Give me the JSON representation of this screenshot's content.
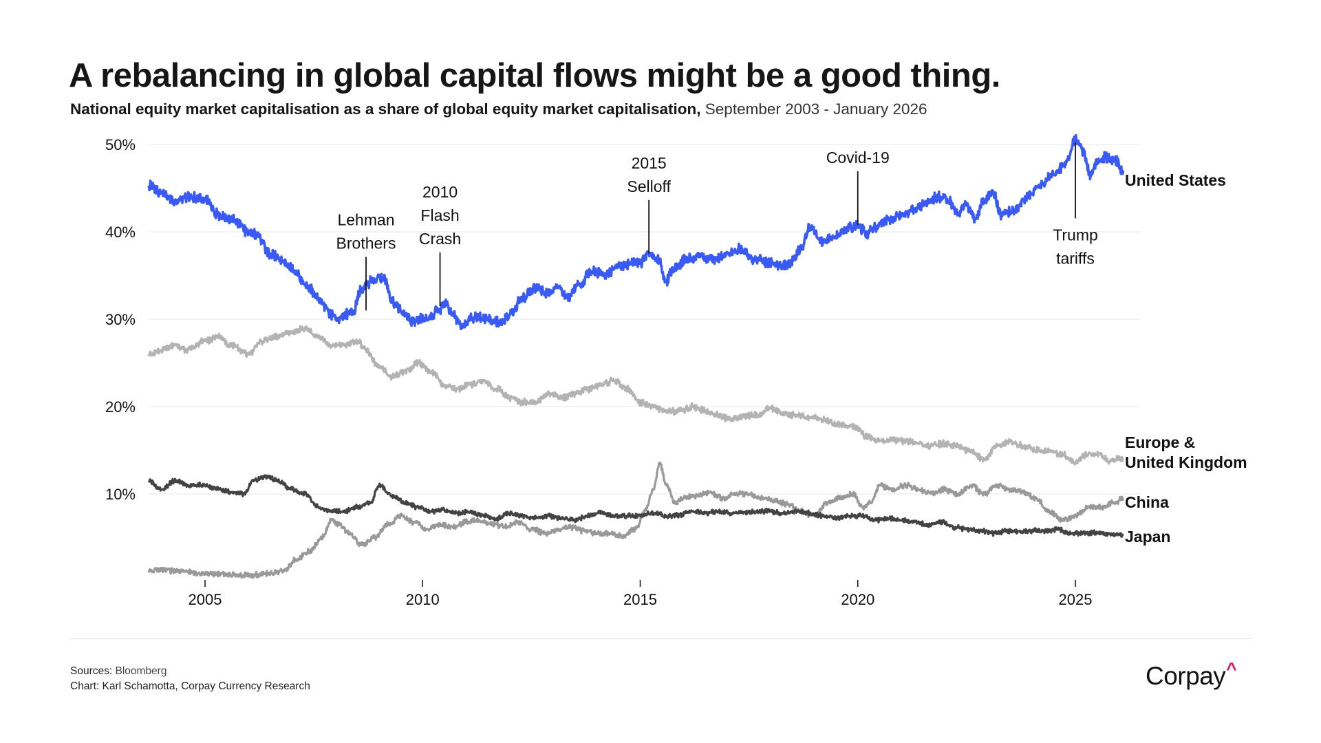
{
  "header": {
    "title": "A rebalancing in global capital flows might be a good thing.",
    "subtitle_bold": "National equity market capitalisation as a share of global equity market capitalisation,",
    "subtitle_period": " September 2003 - January 2026"
  },
  "footer": {
    "sources_label": "Sources:",
    "sources_value": " Bloomberg",
    "chart_credit": "Chart: Karl Schamotta, Corpay Currency Research",
    "logo_text": "Corpay",
    "logo_caret": "^"
  },
  "chart_data": {
    "type": "line",
    "title": "A rebalancing in global capital flows might be a good thing.",
    "subtitle": "National equity market capitalisation as a share of global equity market capitalisation, September 2003 - January 2026",
    "xlabel": "",
    "ylabel": "",
    "xlim": [
      2003.7,
      2026.1
    ],
    "ylim": [
      0,
      52
    ],
    "grid": true,
    "legend": "inline-right",
    "y_ticks": [
      {
        "value": 10,
        "label": "10%"
      },
      {
        "value": 20,
        "label": "20%"
      },
      {
        "value": 30,
        "label": "30%"
      },
      {
        "value": 40,
        "label": "40%"
      },
      {
        "value": 50,
        "label": "50%"
      }
    ],
    "x_ticks": [
      {
        "value": 2005,
        "label": "2005"
      },
      {
        "value": 2010,
        "label": "2010"
      },
      {
        "value": 2015,
        "label": "2015"
      },
      {
        "value": 2020,
        "label": "2020"
      },
      {
        "value": 2025,
        "label": "2025"
      }
    ],
    "series": [
      {
        "name": "United States",
        "color": "#3a5af5",
        "x": [
          2003.7,
          2004.0,
          2004.3,
          2004.6,
          2005.0,
          2005.3,
          2005.6,
          2006.0,
          2006.2,
          2006.5,
          2006.8,
          2007.0,
          2007.3,
          2007.6,
          2007.9,
          2008.1,
          2008.4,
          2008.6,
          2008.9,
          2009.1,
          2009.3,
          2009.5,
          2009.8,
          2010.1,
          2010.4,
          2010.5,
          2010.7,
          2010.9,
          2011.2,
          2011.5,
          2011.8,
          2012.0,
          2012.3,
          2012.6,
          2012.9,
          2013.1,
          2013.3,
          2013.6,
          2013.9,
          2014.2,
          2014.5,
          2014.8,
          2015.0,
          2015.2,
          2015.4,
          2015.6,
          2015.8,
          2016.1,
          2016.4,
          2016.7,
          2017.0,
          2017.3,
          2017.6,
          2017.9,
          2018.2,
          2018.4,
          2018.7,
          2018.9,
          2019.2,
          2019.5,
          2019.8,
          2020.0,
          2020.2,
          2020.4,
          2020.7,
          2021.0,
          2021.3,
          2021.6,
          2021.9,
          2022.1,
          2022.3,
          2022.5,
          2022.7,
          2022.9,
          2023.1,
          2023.3,
          2023.6,
          2023.9,
          2024.2,
          2024.5,
          2024.8,
          2025.0,
          2025.1,
          2025.2,
          2025.35,
          2025.5,
          2025.7,
          2025.9,
          2026.1
        ],
        "values": [
          45.3,
          44.5,
          43.5,
          44.0,
          43.8,
          42.0,
          41.5,
          40.0,
          39.5,
          37.5,
          36.5,
          35.8,
          34.0,
          32.5,
          30.5,
          30.2,
          31.0,
          33.5,
          34.5,
          34.8,
          32.0,
          31.0,
          29.8,
          30.0,
          31.0,
          31.8,
          30.5,
          29.2,
          30.2,
          30.0,
          29.5,
          30.5,
          32.5,
          33.5,
          33.0,
          33.8,
          32.5,
          34.0,
          35.5,
          35.2,
          36.0,
          36.3,
          36.5,
          37.5,
          37.0,
          34.5,
          36.0,
          37.0,
          37.2,
          36.8,
          37.5,
          38.0,
          37.0,
          36.5,
          36.0,
          36.3,
          38.0,
          40.5,
          39.0,
          39.5,
          40.5,
          40.8,
          39.8,
          40.5,
          41.5,
          41.8,
          42.5,
          43.5,
          44.0,
          43.5,
          42.0,
          43.0,
          41.5,
          43.5,
          44.5,
          42.0,
          42.5,
          44.0,
          45.5,
          46.5,
          48.0,
          50.5,
          50.0,
          49.0,
          46.5,
          48.0,
          48.5,
          48.2,
          47.0
        ]
      },
      {
        "name": "Europe & United Kingdom",
        "color": "#b3b3b3",
        "x": [
          2003.7,
          2004.0,
          2004.3,
          2004.6,
          2005.0,
          2005.3,
          2005.6,
          2006.0,
          2006.3,
          2006.6,
          2007.0,
          2007.3,
          2007.6,
          2007.9,
          2008.2,
          2008.5,
          2008.7,
          2009.0,
          2009.3,
          2009.6,
          2009.9,
          2010.2,
          2010.5,
          2010.8,
          2011.1,
          2011.4,
          2011.7,
          2012.0,
          2012.3,
          2012.6,
          2012.9,
          2013.2,
          2013.5,
          2013.8,
          2014.1,
          2014.4,
          2014.7,
          2015.0,
          2015.3,
          2015.6,
          2015.9,
          2016.2,
          2016.5,
          2016.8,
          2017.1,
          2017.4,
          2017.7,
          2018.0,
          2018.3,
          2018.6,
          2018.9,
          2019.2,
          2019.5,
          2019.8,
          2020.0,
          2020.2,
          2020.5,
          2020.8,
          2021.1,
          2021.4,
          2021.7,
          2022.0,
          2022.3,
          2022.6,
          2022.9,
          2023.2,
          2023.5,
          2023.8,
          2024.1,
          2024.4,
          2024.7,
          2025.0,
          2025.2,
          2025.5,
          2025.8,
          2026.1
        ],
        "values": [
          26.0,
          26.5,
          27.0,
          26.5,
          27.5,
          28.0,
          27.0,
          26.0,
          27.5,
          28.0,
          28.5,
          29.0,
          28.0,
          27.0,
          27.0,
          27.5,
          26.5,
          24.5,
          23.5,
          24.0,
          25.0,
          24.0,
          22.5,
          22.0,
          22.5,
          23.0,
          22.0,
          21.0,
          20.5,
          20.5,
          21.5,
          21.0,
          21.5,
          22.0,
          22.5,
          23.0,
          22.0,
          20.5,
          20.0,
          19.5,
          19.5,
          20.0,
          19.5,
          19.0,
          18.5,
          19.0,
          19.0,
          19.8,
          19.2,
          19.0,
          18.8,
          18.5,
          18.0,
          17.8,
          17.5,
          16.5,
          16.0,
          16.2,
          16.0,
          15.8,
          15.5,
          15.8,
          15.5,
          14.8,
          14.0,
          15.5,
          16.0,
          15.5,
          15.0,
          15.0,
          14.5,
          13.5,
          14.5,
          14.5,
          13.8,
          14.0
        ]
      },
      {
        "name": "China",
        "color": "#999999",
        "x": [
          2003.7,
          2004.0,
          2004.5,
          2005.0,
          2005.5,
          2006.0,
          2006.5,
          2006.8,
          2007.1,
          2007.4,
          2007.7,
          2007.9,
          2008.1,
          2008.3,
          2008.6,
          2008.9,
          2009.2,
          2009.5,
          2009.8,
          2010.1,
          2010.4,
          2010.7,
          2011.0,
          2011.3,
          2011.6,
          2011.9,
          2012.2,
          2012.5,
          2012.8,
          2013.1,
          2013.4,
          2013.7,
          2014.0,
          2014.3,
          2014.6,
          2014.9,
          2015.1,
          2015.3,
          2015.45,
          2015.6,
          2015.8,
          2016.0,
          2016.3,
          2016.6,
          2016.9,
          2017.2,
          2017.5,
          2017.8,
          2018.1,
          2018.4,
          2018.7,
          2019.0,
          2019.3,
          2019.6,
          2019.9,
          2020.1,
          2020.3,
          2020.5,
          2020.8,
          2021.1,
          2021.4,
          2021.7,
          2022.0,
          2022.3,
          2022.6,
          2022.9,
          2023.2,
          2023.5,
          2023.8,
          2024.1,
          2024.4,
          2024.7,
          2025.0,
          2025.3,
          2025.6,
          2025.9,
          2026.1
        ],
        "values": [
          1.2,
          1.3,
          1.1,
          0.9,
          0.8,
          0.7,
          0.9,
          1.2,
          2.5,
          3.5,
          5.0,
          7.0,
          6.5,
          5.5,
          4.2,
          5.0,
          6.5,
          7.5,
          6.8,
          6.0,
          6.5,
          6.2,
          6.8,
          7.0,
          6.5,
          6.3,
          6.8,
          6.0,
          5.5,
          5.8,
          6.2,
          5.8,
          5.5,
          5.5,
          5.2,
          6.0,
          8.0,
          10.5,
          13.5,
          11.0,
          9.0,
          9.5,
          9.8,
          10.2,
          9.5,
          10.0,
          10.0,
          9.5,
          9.2,
          8.8,
          8.0,
          7.5,
          9.0,
          9.5,
          10.0,
          8.5,
          9.0,
          11.0,
          10.5,
          11.0,
          10.5,
          10.0,
          10.5,
          10.0,
          11.0,
          10.0,
          11.0,
          10.5,
          10.2,
          9.5,
          8.0,
          7.0,
          7.5,
          8.5,
          8.5,
          9.0,
          9.5
        ]
      },
      {
        "name": "Japan",
        "color": "#434343",
        "x": [
          2003.7,
          2004.0,
          2004.3,
          2004.6,
          2005.0,
          2005.3,
          2005.6,
          2005.9,
          2006.1,
          2006.4,
          2006.7,
          2007.0,
          2007.3,
          2007.6,
          2007.9,
          2008.2,
          2008.5,
          2008.8,
          2009.0,
          2009.3,
          2009.6,
          2009.9,
          2010.2,
          2010.5,
          2010.8,
          2011.1,
          2011.4,
          2011.7,
          2012.0,
          2012.3,
          2012.6,
          2012.9,
          2013.2,
          2013.5,
          2013.8,
          2014.1,
          2014.4,
          2014.7,
          2015.0,
          2015.3,
          2015.6,
          2015.9,
          2016.2,
          2016.5,
          2016.8,
          2017.1,
          2017.4,
          2017.7,
          2018.0,
          2018.3,
          2018.6,
          2018.9,
          2019.2,
          2019.5,
          2019.8,
          2020.1,
          2020.4,
          2020.7,
          2021.0,
          2021.3,
          2021.6,
          2021.9,
          2022.2,
          2022.5,
          2022.8,
          2023.1,
          2023.4,
          2023.7,
          2024.0,
          2024.3,
          2024.6,
          2024.9,
          2025.2,
          2025.5,
          2025.8,
          2026.1
        ],
        "values": [
          11.5,
          10.5,
          11.5,
          11.0,
          11.0,
          10.5,
          10.2,
          10.0,
          11.5,
          12.0,
          11.5,
          10.5,
          10.0,
          8.5,
          8.0,
          8.0,
          8.5,
          9.0,
          11.0,
          9.8,
          9.0,
          8.5,
          8.0,
          8.2,
          7.8,
          8.0,
          7.5,
          7.2,
          7.8,
          7.5,
          7.2,
          7.5,
          7.2,
          7.0,
          7.5,
          7.8,
          7.5,
          7.5,
          7.5,
          7.8,
          7.5,
          7.6,
          8.0,
          7.8,
          8.0,
          7.8,
          7.9,
          8.0,
          8.0,
          7.8,
          8.0,
          7.8,
          7.5,
          7.2,
          7.5,
          7.5,
          7.0,
          7.2,
          7.0,
          6.8,
          6.5,
          6.8,
          6.2,
          6.0,
          5.8,
          5.5,
          5.7,
          5.7,
          5.8,
          5.8,
          5.9,
          5.5,
          5.5,
          5.6,
          5.4,
          5.3
        ]
      }
    ],
    "series_labels": [
      {
        "series": "United States",
        "lines": [
          "United States"
        ]
      },
      {
        "series": "Europe & United Kingdom",
        "lines": [
          "Europe &",
          "United Kingdom"
        ]
      },
      {
        "series": "China",
        "lines": [
          "China"
        ]
      },
      {
        "series": "Japan",
        "lines": [
          "Japan"
        ]
      }
    ],
    "annotations": [
      {
        "x": 2008.7,
        "y": 31.0,
        "lines": [
          "Lehman",
          "Brothers"
        ],
        "position": "above"
      },
      {
        "x": 2010.4,
        "y": 31.5,
        "lines": [
          "2010",
          "Flash",
          "Crash"
        ],
        "position": "above"
      },
      {
        "x": 2015.2,
        "y": 37.5,
        "lines": [
          "2015",
          "Selloff"
        ],
        "position": "above"
      },
      {
        "x": 2020.0,
        "y": 40.8,
        "lines": [
          "Covid-19"
        ],
        "position": "above"
      },
      {
        "x": 2025.0,
        "y": 50.2,
        "lines": [
          "Trump",
          "tariffs"
        ],
        "position": "below"
      }
    ]
  }
}
